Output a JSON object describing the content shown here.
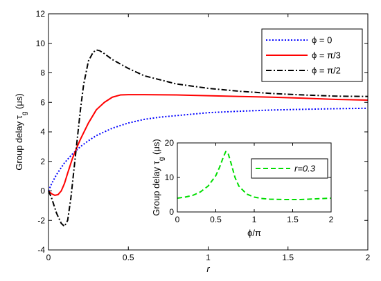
{
  "chart_data": [
    {
      "type": "line",
      "xlabel": "r",
      "ylabel": "Group delay τ_g (μs)",
      "ylabel_parts": {
        "prefix": "Group delay ",
        "tau": "τ",
        "sub": "g",
        "unit": " (μs)"
      },
      "xlim": [
        0,
        2
      ],
      "ylim": [
        -4,
        12
      ],
      "xticks": [
        0,
        0.5,
        1,
        1.5,
        2
      ],
      "xtick_labels": [
        "0",
        "0.5",
        "1",
        "1.5",
        "2"
      ],
      "yticks": [
        -4,
        -2,
        0,
        2,
        4,
        6,
        8,
        10,
        12
      ],
      "ytick_labels": [
        "-4",
        "-2",
        "0",
        "2",
        "4",
        "6",
        "8",
        "10",
        "12"
      ],
      "grid": false,
      "legend": "top-right",
      "series": [
        {
          "name": "ϕ = 0",
          "color": "#0000ff",
          "dash": "dotted",
          "x": [
            0,
            0.02,
            0.05,
            0.1,
            0.15,
            0.2,
            0.25,
            0.3,
            0.35,
            0.4,
            0.5,
            0.6,
            0.7,
            0.8,
            1.0,
            1.2,
            1.4,
            1.6,
            1.8,
            2.0
          ],
          "y": [
            0,
            0.5,
            1.1,
            1.9,
            2.5,
            3.0,
            3.4,
            3.75,
            4.0,
            4.25,
            4.6,
            4.85,
            5.0,
            5.1,
            5.3,
            5.4,
            5.48,
            5.53,
            5.57,
            5.6
          ]
        },
        {
          "name": "ϕ = π/3",
          "color": "#ff0000",
          "dash": "solid",
          "x": [
            0,
            0.02,
            0.04,
            0.06,
            0.08,
            0.1,
            0.12,
            0.15,
            0.18,
            0.2,
            0.25,
            0.3,
            0.35,
            0.4,
            0.45,
            0.5,
            0.6,
            0.8,
            1.0,
            1.2,
            1.4,
            1.6,
            1.8,
            2.0
          ],
          "y": [
            0,
            -0.2,
            -0.3,
            -0.25,
            0.0,
            0.5,
            1.2,
            2.2,
            3.0,
            3.5,
            4.6,
            5.5,
            6.0,
            6.35,
            6.5,
            6.52,
            6.52,
            6.5,
            6.45,
            6.4,
            6.35,
            6.28,
            6.2,
            6.15
          ]
        },
        {
          "name": "ϕ = π/2",
          "color": "#000000",
          "dash": "dashdot",
          "x": [
            0,
            0.02,
            0.05,
            0.08,
            0.1,
            0.12,
            0.14,
            0.16,
            0.18,
            0.2,
            0.22,
            0.25,
            0.28,
            0.3,
            0.32,
            0.35,
            0.4,
            0.5,
            0.6,
            0.8,
            1.0,
            1.2,
            1.4,
            1.6,
            1.8,
            2.0
          ],
          "y": [
            0,
            -0.5,
            -1.5,
            -2.2,
            -2.4,
            -2.0,
            -0.5,
            1.5,
            3.5,
            5.5,
            7.2,
            8.8,
            9.4,
            9.55,
            9.5,
            9.3,
            8.9,
            8.3,
            7.8,
            7.25,
            6.95,
            6.75,
            6.6,
            6.5,
            6.42,
            6.4
          ]
        }
      ]
    },
    {
      "type": "line",
      "inset": true,
      "xlabel": "ϕ/π",
      "ylabel": "Group delay τ_g (μs)",
      "ylabel_parts": {
        "prefix": "Group delay ",
        "tau": "τ",
        "sub": "g",
        "unit": " (μs)"
      },
      "xlim": [
        0,
        2
      ],
      "ylim": [
        0,
        20
      ],
      "xticks": [
        0,
        0.5,
        1,
        1.5,
        2
      ],
      "xtick_labels": [
        "0",
        "0.5",
        "1",
        "1.5",
        "2"
      ],
      "yticks": [
        0,
        10,
        20
      ],
      "ytick_labels": [
        "0",
        "10",
        "20"
      ],
      "legend": "top-right",
      "series": [
        {
          "name": "r=0.3",
          "color": "#00dd00",
          "dash": "dashed",
          "x": [
            0,
            0.1,
            0.2,
            0.3,
            0.4,
            0.5,
            0.55,
            0.6,
            0.63,
            0.66,
            0.7,
            0.75,
            0.8,
            0.9,
            1.0,
            1.1,
            1.2,
            1.4,
            1.6,
            1.8,
            2.0
          ],
          "y": [
            4.0,
            4.3,
            4.8,
            5.8,
            7.5,
            10.5,
            13.0,
            16.0,
            17.5,
            17.0,
            14.0,
            10.0,
            7.5,
            5.2,
            4.3,
            3.9,
            3.7,
            3.6,
            3.6,
            3.8,
            4.0
          ]
        }
      ]
    }
  ]
}
